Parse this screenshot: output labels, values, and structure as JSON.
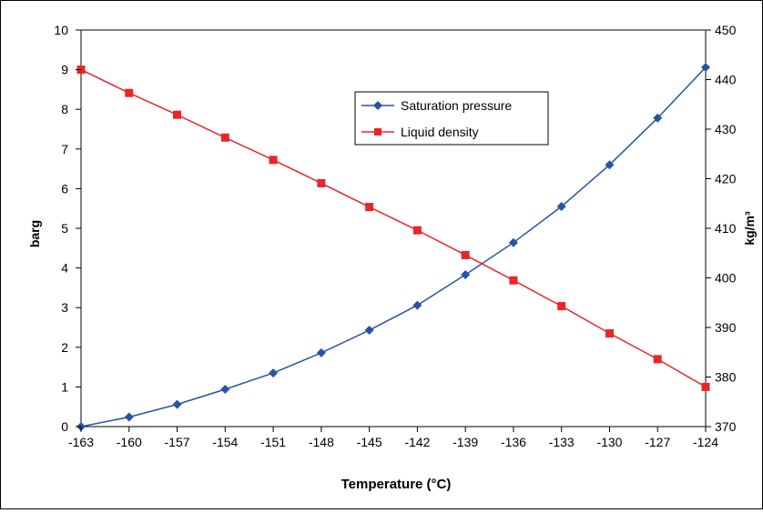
{
  "chart_data": {
    "type": "line",
    "title": "",
    "xlabel": "Temperature (°C)",
    "ylabel_left": "barg",
    "ylabel_right": "kg/m³",
    "x": [
      -163,
      -160,
      -157,
      -154,
      -151,
      -148,
      -145,
      -142,
      -139,
      -136,
      -133,
      -130,
      -127,
      -124
    ],
    "xlim": [
      -163,
      -124
    ],
    "ylim_left": [
      0,
      10
    ],
    "ylim_right": [
      370,
      450
    ],
    "y_ticks_left": [
      0,
      1,
      2,
      3,
      4,
      5,
      6,
      7,
      8,
      9,
      10
    ],
    "y_ticks_right": [
      370,
      380,
      390,
      400,
      410,
      420,
      430,
      440,
      450
    ],
    "grid": false,
    "legend_position": "top-center",
    "series": [
      {
        "name": "Saturation pressure",
        "axis": "left",
        "color": "#2455a4",
        "marker": "diamond",
        "values": [
          0.0,
          0.24,
          0.56,
          0.94,
          1.35,
          1.86,
          2.43,
          3.06,
          3.83,
          4.64,
          5.55,
          6.6,
          7.78,
          9.06
        ]
      },
      {
        "name": "Liquid density",
        "axis": "right",
        "color": "#e8262a",
        "marker": "square",
        "values": [
          442.0,
          437.3,
          432.9,
          428.3,
          423.8,
          419.1,
          414.3,
          409.6,
          404.6,
          399.5,
          394.3,
          388.8,
          383.6,
          378.0
        ]
      }
    ]
  }
}
